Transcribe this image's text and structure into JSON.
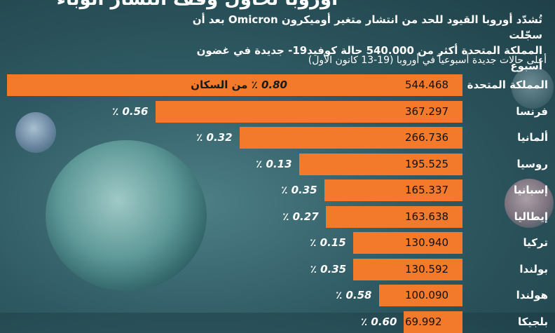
{
  "header": {
    "title_fragment": "أوروبا تحاول وقف انتشار الوباء",
    "subtitle_line1": "تُشدّد أوروبا القيود للحد من انتشار متغير أوميكرون Omicron بعد أن سجّلت",
    "subtitle_line2": "المملكة المتحدة أكثر من 540.000 حالة كوفيد19- جديدة في غضون أسبوع"
  },
  "chart_data": {
    "type": "bar",
    "orientation": "horizontal",
    "title": "أعلى حالات جديدة أسبوعياً في أوروبا (19-13 كانون الأول)",
    "bar_color": "#f27a2a",
    "categories": [
      "المملكة المتحدة",
      "فرنسا",
      "ألمانيا",
      "روسيا",
      "إسبانيا",
      "إيطاليا",
      "تركيا",
      "بولندا",
      "هولندا",
      "بلجيكا"
    ],
    "values": [
      544468,
      367297,
      266736,
      195525,
      165337,
      163638,
      130940,
      130592,
      100090,
      69992
    ],
    "value_labels": [
      "544.468",
      "367.297",
      "266.736",
      "195.525",
      "165.337",
      "163.638",
      "130.940",
      "130.592",
      "100.090",
      "69.992"
    ],
    "percent_of_population": [
      "0.80",
      "0.56",
      "0.32",
      "0.13",
      "0.35",
      "0.27",
      "0.15",
      "0.35",
      "0.58",
      "0.60"
    ],
    "percent_suffix_first": "٪ من السكان",
    "percent_suffix": "٪"
  }
}
